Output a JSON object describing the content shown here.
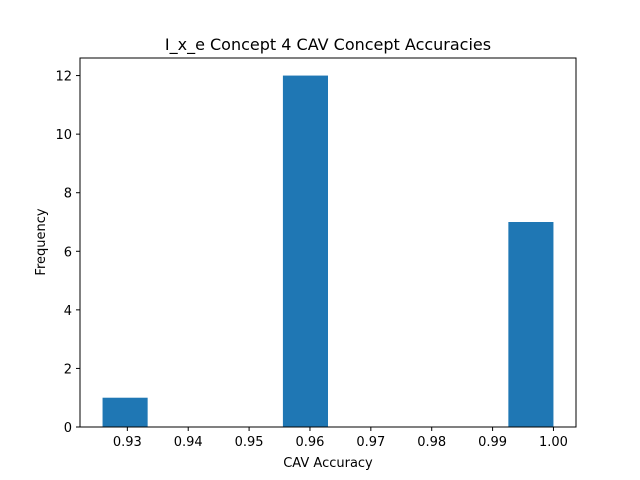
{
  "chart_data": {
    "type": "bar",
    "title": "I_x_e Concept 4 CAV Concept Accuracies",
    "xlabel": "CAV Accuracy",
    "ylabel": "Frequency",
    "bins": [
      {
        "x0": 0.925926,
        "x1": 0.933333,
        "count": 1
      },
      {
        "x0": 0.933333,
        "x1": 0.940741,
        "count": 0
      },
      {
        "x0": 0.940741,
        "x1": 0.948148,
        "count": 0
      },
      {
        "x0": 0.948148,
        "x1": 0.955556,
        "count": 0
      },
      {
        "x0": 0.955556,
        "x1": 0.962963,
        "count": 12
      },
      {
        "x0": 0.962963,
        "x1": 0.97037,
        "count": 0
      },
      {
        "x0": 0.97037,
        "x1": 0.977778,
        "count": 0
      },
      {
        "x0": 0.977778,
        "x1": 0.985185,
        "count": 0
      },
      {
        "x0": 0.985185,
        "x1": 0.992593,
        "count": 0
      },
      {
        "x0": 0.992593,
        "x1": 1.0,
        "count": 7
      }
    ],
    "xlim": [
      0.922222,
      1.003704
    ],
    "ylim": [
      0,
      12.6
    ],
    "xticks": [
      0.93,
      0.94,
      0.95,
      0.96,
      0.97,
      0.98,
      0.99,
      1.0
    ],
    "xtick_labels": [
      "0.93",
      "0.94",
      "0.95",
      "0.96",
      "0.97",
      "0.98",
      "0.99",
      "1.00"
    ],
    "yticks": [
      0,
      2,
      4,
      6,
      8,
      10,
      12
    ],
    "ytick_labels": [
      "0",
      "2",
      "4",
      "6",
      "8",
      "10",
      "12"
    ],
    "bar_color": "#1f77b4",
    "grid": false,
    "legend": false
  }
}
